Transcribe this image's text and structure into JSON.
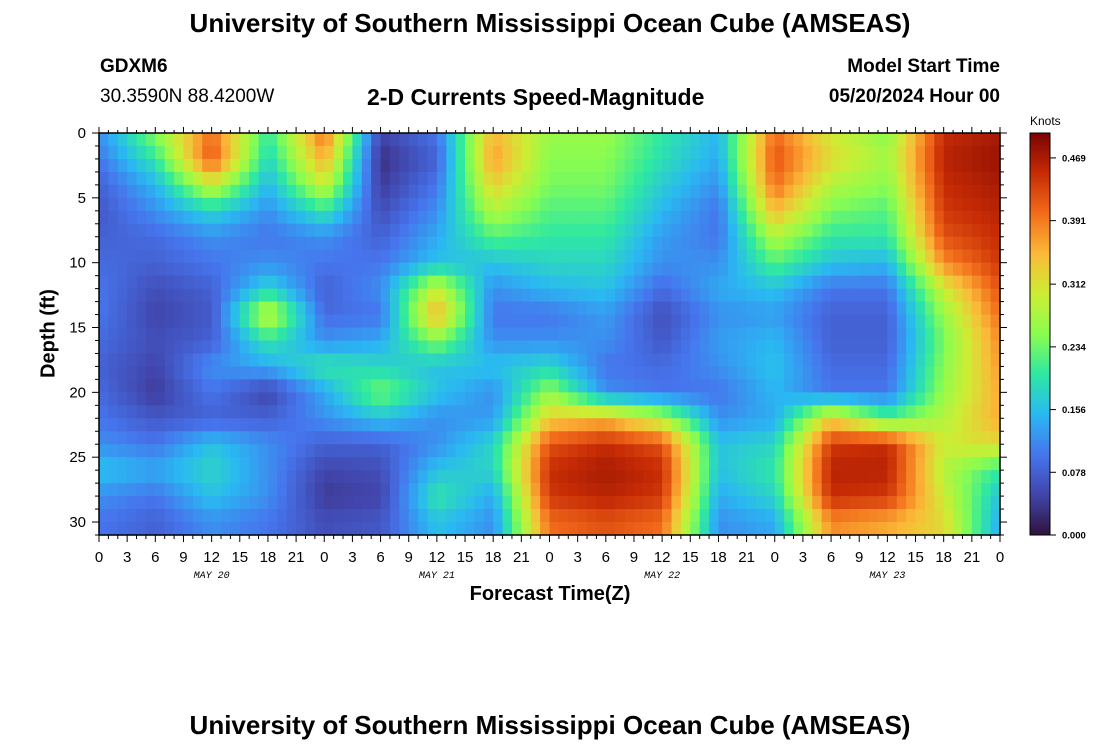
{
  "header": {
    "title": "University of Southern Mississippi Ocean Cube (AMSEAS)",
    "station_id": "GDXM6",
    "station_coords": "30.3590N  88.4200W",
    "plot_name": "2-D Currents Speed-Magnitude",
    "model_start_label": "Model Start Time",
    "model_start_value": "05/20/2024 Hour 00"
  },
  "footer": {
    "title": "University of Southern Mississippi Ocean Cube (AMSEAS)"
  },
  "chart_data": {
    "type": "heatmap",
    "title": "2-D Currents Speed-Magnitude",
    "xlabel": "Forecast Time(Z)",
    "ylabel": "Depth (ft)",
    "x_hours_range": [
      0,
      96
    ],
    "x_ticks": [
      "0",
      "3",
      "6",
      "9",
      "12",
      "15",
      "18",
      "21",
      "0",
      "3",
      "6",
      "9",
      "12",
      "15",
      "18",
      "21",
      "0",
      "3",
      "6",
      "9",
      "12",
      "15",
      "18",
      "21",
      "0",
      "3",
      "6",
      "9",
      "12",
      "15",
      "18",
      "21",
      "0"
    ],
    "date_labels": [
      "MAY 20",
      "MAY 21",
      "MAY 22",
      "MAY 23"
    ],
    "y_range": [
      0,
      31
    ],
    "y_ticks": [
      0,
      5,
      10,
      15,
      20,
      25,
      30
    ],
    "colorbar": {
      "unit": "Knots",
      "min": 0.0,
      "max": 0.5,
      "tick_labels": [
        "0.000",
        "0.078",
        "0.156",
        "0.234",
        "0.312",
        "0.391",
        "0.469"
      ]
    },
    "depths_ft": [
      0,
      2,
      4,
      6,
      8,
      10,
      12,
      14,
      16,
      18,
      20,
      22,
      24,
      26,
      28,
      30
    ],
    "hours": [
      0,
      6,
      12,
      18,
      24,
      30,
      36,
      42,
      48,
      54,
      60,
      66,
      72,
      78,
      84,
      90,
      96
    ],
    "values": [
      [
        0.12,
        0.25,
        0.4,
        0.2,
        0.4,
        0.05,
        0.1,
        0.35,
        0.26,
        0.26,
        0.2,
        0.15,
        0.4,
        0.3,
        0.25,
        0.45,
        0.47
      ],
      [
        0.1,
        0.2,
        0.42,
        0.18,
        0.36,
        0.03,
        0.08,
        0.37,
        0.25,
        0.25,
        0.19,
        0.14,
        0.42,
        0.32,
        0.27,
        0.46,
        0.48
      ],
      [
        0.08,
        0.15,
        0.3,
        0.15,
        0.3,
        0.04,
        0.1,
        0.33,
        0.24,
        0.24,
        0.17,
        0.12,
        0.4,
        0.28,
        0.25,
        0.45,
        0.47
      ],
      [
        0.07,
        0.12,
        0.18,
        0.12,
        0.2,
        0.06,
        0.12,
        0.28,
        0.22,
        0.22,
        0.15,
        0.1,
        0.35,
        0.24,
        0.22,
        0.44,
        0.46
      ],
      [
        0.08,
        0.09,
        0.12,
        0.1,
        0.12,
        0.08,
        0.14,
        0.22,
        0.2,
        0.2,
        0.13,
        0.1,
        0.28,
        0.2,
        0.2,
        0.42,
        0.45
      ],
      [
        0.09,
        0.08,
        0.1,
        0.12,
        0.1,
        0.1,
        0.16,
        0.16,
        0.18,
        0.18,
        0.12,
        0.12,
        0.22,
        0.16,
        0.15,
        0.38,
        0.44
      ],
      [
        0.1,
        0.06,
        0.08,
        0.18,
        0.08,
        0.12,
        0.3,
        0.12,
        0.15,
        0.16,
        0.09,
        0.14,
        0.16,
        0.1,
        0.1,
        0.3,
        0.42
      ],
      [
        0.1,
        0.05,
        0.07,
        0.3,
        0.09,
        0.1,
        0.36,
        0.1,
        0.1,
        0.13,
        0.06,
        0.12,
        0.13,
        0.08,
        0.08,
        0.26,
        0.4
      ],
      [
        0.09,
        0.06,
        0.08,
        0.2,
        0.12,
        0.14,
        0.25,
        0.12,
        0.12,
        0.12,
        0.07,
        0.13,
        0.15,
        0.08,
        0.08,
        0.24,
        0.38
      ],
      [
        0.08,
        0.05,
        0.12,
        0.14,
        0.2,
        0.18,
        0.16,
        0.16,
        0.18,
        0.1,
        0.09,
        0.12,
        0.16,
        0.09,
        0.09,
        0.25,
        0.37
      ],
      [
        0.09,
        0.04,
        0.1,
        0.05,
        0.14,
        0.24,
        0.16,
        0.12,
        0.26,
        0.12,
        0.1,
        0.1,
        0.15,
        0.1,
        0.1,
        0.26,
        0.36
      ],
      [
        0.1,
        0.07,
        0.08,
        0.08,
        0.12,
        0.16,
        0.12,
        0.13,
        0.33,
        0.35,
        0.28,
        0.12,
        0.14,
        0.33,
        0.22,
        0.28,
        0.36
      ],
      [
        0.12,
        0.1,
        0.16,
        0.12,
        0.08,
        0.08,
        0.12,
        0.18,
        0.42,
        0.45,
        0.42,
        0.16,
        0.18,
        0.44,
        0.45,
        0.3,
        0.32
      ],
      [
        0.16,
        0.14,
        0.18,
        0.12,
        0.05,
        0.06,
        0.16,
        0.18,
        0.45,
        0.47,
        0.45,
        0.16,
        0.2,
        0.46,
        0.46,
        0.28,
        0.2
      ],
      [
        0.12,
        0.1,
        0.16,
        0.12,
        0.04,
        0.05,
        0.2,
        0.14,
        0.44,
        0.46,
        0.44,
        0.14,
        0.18,
        0.45,
        0.44,
        0.3,
        0.16
      ],
      [
        0.1,
        0.08,
        0.12,
        0.1,
        0.06,
        0.07,
        0.16,
        0.12,
        0.4,
        0.42,
        0.4,
        0.12,
        0.14,
        0.38,
        0.36,
        0.32,
        0.14
      ]
    ]
  }
}
